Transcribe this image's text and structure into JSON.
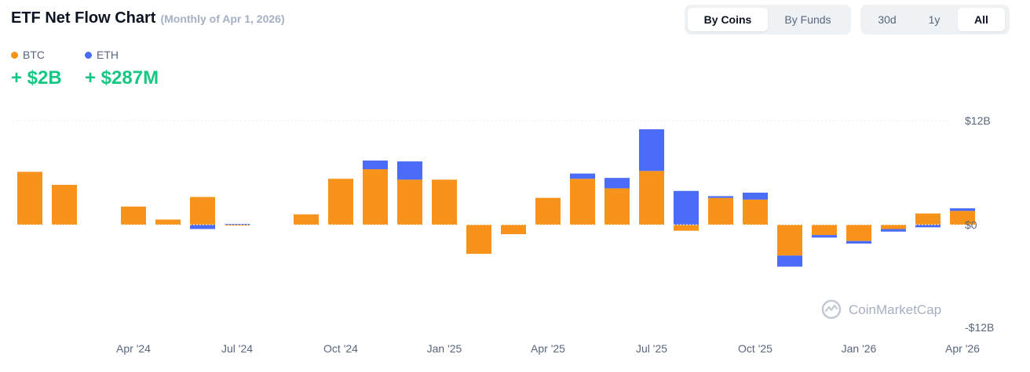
{
  "header": {
    "title": "ETF Net Flow Chart",
    "subtitle": "(Monthly of Apr 1, 2026)"
  },
  "view_toggle": {
    "options": [
      "By Coins",
      "By Funds"
    ],
    "selected": "By Coins"
  },
  "range_toggle": {
    "options": [
      "30d",
      "1y",
      "All"
    ],
    "selected": "All"
  },
  "legend": [
    {
      "name": "BTC",
      "value": "+ $2B",
      "color": "#f7931a"
    },
    {
      "name": "ETH",
      "value": "+ $287M",
      "color": "#4a6cf7"
    }
  ],
  "watermark": "CoinMarketCap",
  "chart_data": {
    "type": "bar",
    "stacked": true,
    "y_unit": "USD billions",
    "ylim": [
      -12,
      12
    ],
    "y_ticks": [
      {
        "value": 12,
        "label": "$12B"
      },
      {
        "value": 0,
        "label": "$0"
      },
      {
        "value": -12,
        "label": "-$12B"
      }
    ],
    "categories": [
      "Jan '24",
      "Feb '24",
      "Mar '24",
      "Apr '24",
      "May '24",
      "Jun '24",
      "Jul '24",
      "Aug '24",
      "Sep '24",
      "Oct '24",
      "Nov '24",
      "Dec '24",
      "Jan '25",
      "Feb '25",
      "Mar '25",
      "Apr '25",
      "May '25",
      "Jun '25",
      "Jul '25",
      "Aug '25",
      "Sep '25",
      "Oct '25",
      "Nov '25",
      "Dec '25",
      "Jan '26",
      "Feb '26",
      "Mar '26",
      "Apr '26"
    ],
    "x_tick_labels": [
      {
        "index": 3,
        "label": "Apr '24"
      },
      {
        "index": 6,
        "label": "Jul '24"
      },
      {
        "index": 9,
        "label": "Oct '24"
      },
      {
        "index": 12,
        "label": "Jan '25"
      },
      {
        "index": 15,
        "label": "Apr '25"
      },
      {
        "index": 18,
        "label": "Jul '25"
      },
      {
        "index": 21,
        "label": "Oct '25"
      },
      {
        "index": 24,
        "label": "Jan '26"
      },
      {
        "index": 27,
        "label": "Apr '26"
      }
    ],
    "series": [
      {
        "name": "BTC",
        "color": "#f7931a",
        "values": [
          6.1,
          4.6,
          null,
          2.1,
          0.6,
          3.2,
          -0.1,
          0,
          1.2,
          5.3,
          6.4,
          5.2,
          5.2,
          -3.4,
          -1.1,
          3.1,
          5.3,
          4.2,
          6.2,
          -0.7,
          3.1,
          2.9,
          -3.6,
          -1.2,
          -1.9,
          -0.5,
          1.3,
          1.6
        ]
      },
      {
        "name": "ETH",
        "color": "#4a6cf7",
        "values": [
          0,
          0,
          null,
          0,
          0,
          -0.5,
          0.1,
          0,
          0,
          0,
          1.0,
          2.1,
          0,
          0,
          0,
          0,
          0.6,
          1.2,
          4.8,
          3.9,
          0.2,
          0.8,
          -1.3,
          -0.3,
          -0.3,
          -0.3,
          -0.3,
          0.3
        ]
      }
    ],
    "grid": true,
    "legend_position": "top-left"
  }
}
